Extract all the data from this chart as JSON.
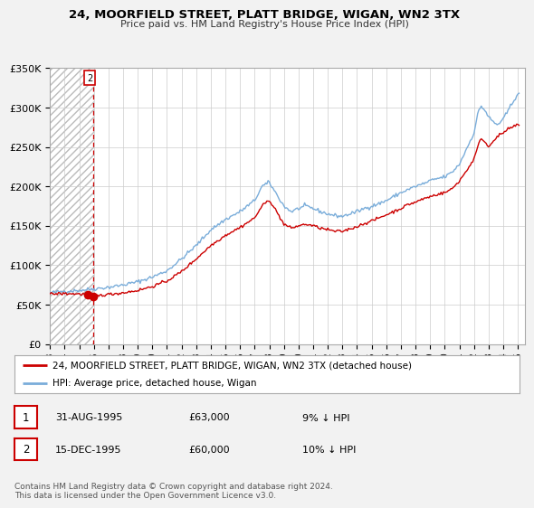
{
  "title": "24, MOORFIELD STREET, PLATT BRIDGE, WIGAN, WN2 3TX",
  "subtitle": "Price paid vs. HM Land Registry's House Price Index (HPI)",
  "legend_line1": "24, MOORFIELD STREET, PLATT BRIDGE, WIGAN, WN2 3TX (detached house)",
  "legend_line2": "HPI: Average price, detached house, Wigan",
  "table_rows": [
    [
      "1",
      "31-AUG-1995",
      "£63,000",
      "9% ↓ HPI"
    ],
    [
      "2",
      "15-DEC-1995",
      "£60,000",
      "10% ↓ HPI"
    ]
  ],
  "footnote1": "Contains HM Land Registry data © Crown copyright and database right 2024.",
  "footnote2": "This data is licensed under the Open Government Licence v3.0.",
  "sale1_year": 1995.583,
  "sale1_price": 63000,
  "sale2_year": 1995.958,
  "sale2_price": 60000,
  "red_line_color": "#cc0000",
  "blue_line_color": "#7aadda",
  "background_color": "#f2f2f2",
  "plot_bg_color": "#ffffff",
  "grid_color": "#cccccc",
  "dashed_line_color": "#cc0000",
  "hatch_color": "#cccccc",
  "ylim": [
    0,
    350000
  ],
  "xlim_start": 1993.0,
  "xlim_end": 2025.5,
  "hatch_end": 1996.0,
  "yticks": [
    0,
    50000,
    100000,
    150000,
    200000,
    250000,
    300000,
    350000
  ],
  "ytick_labels": [
    "£0",
    "£50K",
    "£100K",
    "£150K",
    "£200K",
    "£250K",
    "£300K",
    "£350K"
  ],
  "xticks": [
    1993,
    1994,
    1995,
    1996,
    1997,
    1998,
    1999,
    2000,
    2001,
    2002,
    2003,
    2004,
    2005,
    2006,
    2007,
    2008,
    2009,
    2010,
    2011,
    2012,
    2013,
    2014,
    2015,
    2016,
    2017,
    2018,
    2019,
    2020,
    2021,
    2022,
    2023,
    2024,
    2025
  ]
}
